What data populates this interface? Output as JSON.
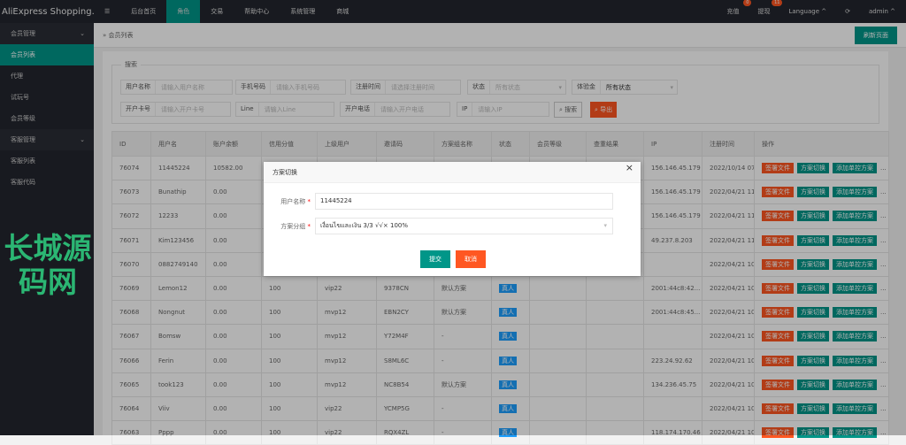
{
  "header": {
    "logo": "AliExpress Shopping...",
    "nav": [
      "☰",
      "后台首页",
      "角色",
      "交易",
      "帮助中心",
      "系统管理",
      "商城"
    ],
    "recharge": "充值",
    "recharge_badge": "0",
    "withdraw": "提现",
    "withdraw_badge": "11",
    "language": "Language ^",
    "refresh": "⟳",
    "user": "admin ^"
  },
  "sidebar": {
    "group1": "会员管理",
    "items1": [
      "会员列表",
      "代理",
      "试玩号",
      "会员等级"
    ],
    "group2": "客服管理",
    "items2": [
      "客服列表",
      "客服代码"
    ]
  },
  "breadcrumb": "会员列表",
  "top_button": "刷新页面",
  "search": {
    "legend": "搜索",
    "fields": [
      {
        "label": "用户名称",
        "placeholder": "请输入用户名称"
      },
      {
        "label": "手机号码",
        "placeholder": "请输入手机号码"
      },
      {
        "label": "注册时间",
        "placeholder": "请选择注册时间"
      },
      {
        "label": "状态",
        "placeholder": "所有状态"
      },
      {
        "label": "体验金",
        "placeholder": "所有状态"
      },
      {
        "label": "开户卡号",
        "placeholder": "请输入开户卡号"
      },
      {
        "label": "Line",
        "placeholder": "请输入Line"
      },
      {
        "label": "开户电话",
        "placeholder": "请输入开户电话"
      },
      {
        "label": "IP",
        "placeholder": "请输入IP"
      }
    ],
    "search_btn": "搜索",
    "export_btn": "导出"
  },
  "table": {
    "headers": [
      "ID",
      "用户名",
      "账户余额",
      "信用分值",
      "上级用户",
      "邀请码",
      "方案组名称",
      "状态",
      "会员等级",
      "查重结果",
      "IP",
      "注册时间",
      "操作"
    ],
    "actions": [
      "签署文件",
      "方案切换",
      "添加单控方案",
      "..."
    ],
    "rows": [
      [
        "76074",
        "11445224",
        "10582.00",
        "",
        "",
        "",
        "",
        "",
        "",
        "",
        "156.146.45.179",
        "2022/10/14 07:45"
      ],
      [
        "76073",
        "Bunathip",
        "0.00",
        "",
        "",
        "",
        "",
        "",
        "",
        "",
        "156.146.45.179",
        "2022/04/21 11:17"
      ],
      [
        "76072",
        "12233",
        "0.00",
        "",
        "",
        "",
        "",
        "",
        "",
        "",
        "156.146.45.179",
        "2022/04/21 11:10"
      ],
      [
        "76071",
        "Kim123456",
        "0.00",
        "",
        "",
        "",
        "",
        "",
        "",
        "",
        "49.237.8.203",
        "2022/04/21 11:01"
      ],
      [
        "76070",
        "0882749140",
        "0.00",
        "",
        "",
        "",
        "",
        "",
        "",
        "",
        "",
        "2022/04/21 10:58"
      ],
      [
        "76069",
        "Lemon12",
        "0.00",
        "100",
        "vip22",
        "9378CN",
        "默认方案",
        "真人",
        "",
        "",
        "2001:44c8:42...",
        "2022/04/21 10:53"
      ],
      [
        "76068",
        "Nongnut",
        "0.00",
        "100",
        "mvp12",
        "EBN2CY",
        "默认方案",
        "真人",
        "",
        "",
        "2001:44c8:45...",
        "2022/04/21 10:51"
      ],
      [
        "76067",
        "Bomsw",
        "0.00",
        "100",
        "mvp12",
        "Y72M4F",
        "-",
        "真人",
        "",
        "",
        "",
        "2022/04/21 10:49"
      ],
      [
        "76066",
        "Ferin",
        "0.00",
        "100",
        "mvp12",
        "S8ML6C",
        "-",
        "真人",
        "",
        "",
        "223.24.92.62",
        "2022/04/21 10:48"
      ],
      [
        "76065",
        "took123",
        "0.00",
        "100",
        "mvp12",
        "NC8B54",
        "默认方案",
        "真人",
        "",
        "",
        "134.236.45.75",
        "2022/04/21 10:35"
      ],
      [
        "76064",
        "Viiv",
        "0.00",
        "100",
        "vip22",
        "YCMP5G",
        "-",
        "真人",
        "",
        "",
        "",
        "2022/04/21 10:18"
      ],
      [
        "76063",
        "Pppp",
        "0.00",
        "100",
        "vip22",
        "RQX4ZL",
        "-",
        "真人",
        "",
        "",
        "118.174.170.46",
        "2022/04/21 10:14"
      ]
    ]
  },
  "modal": {
    "title": "方案切换",
    "close": "×",
    "user_label": "用户名称",
    "user_value": "11445224",
    "group_label": "方案分组",
    "group_value": "เงื่อนไขและเงิน 3/3 √√× 100%",
    "submit": "提交",
    "cancel": "取消",
    "required": "*"
  },
  "watermark": "长城源码网",
  "colors": {
    "primary": "#009688",
    "danger": "#ff5722",
    "info": "#1e9fff",
    "dark": "#23262e"
  }
}
